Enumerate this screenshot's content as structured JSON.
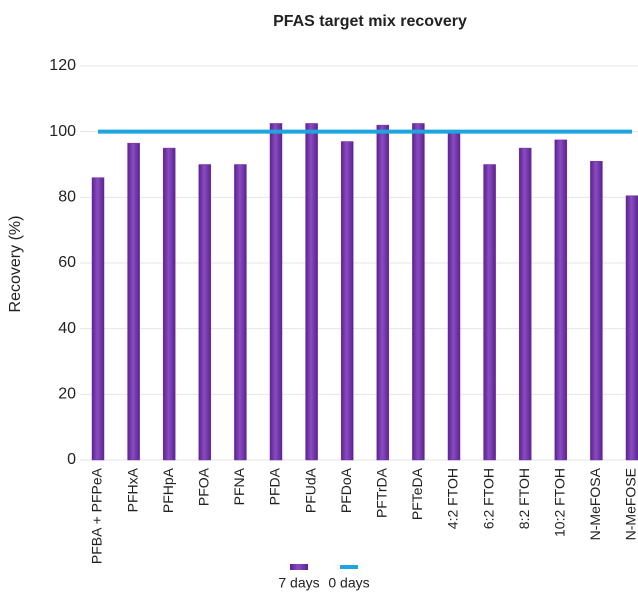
{
  "chart_data": {
    "type": "bar",
    "title": "PFAS target mix recovery",
    "y_label": "Recovery (%)",
    "categories": [
      "PFBA + PFPeA",
      "PFHxA",
      "PFHpA",
      "PFOA",
      "PFNA",
      "PFDA",
      "PFUdA",
      "PFDoA",
      "PFTrDA",
      "PFTeDA",
      "4:2 FTOH",
      "6:2 FTOH",
      "8:2 FTOH",
      "10:2 FTOH",
      "N-MeFOSA",
      "N-MeFOSE"
    ],
    "series": [
      {
        "name": "7 days",
        "type": "bar",
        "color": "#7030a0",
        "values": [
          86,
          96.5,
          95,
          90,
          90,
          102.5,
          102.5,
          97,
          102,
          102.5,
          100,
          90,
          95,
          97.5,
          91,
          80.5
        ]
      },
      {
        "name": "0 days",
        "type": "line",
        "color": "#1ea5e0",
        "values": [
          100,
          100,
          100,
          100,
          100,
          100,
          100,
          100,
          100,
          100,
          100,
          100,
          100,
          100,
          100,
          100
        ]
      }
    ],
    "ylim": [
      0,
      120
    ],
    "yticks": [
      0,
      20,
      40,
      60,
      80,
      100,
      120
    ],
    "grid": true,
    "legend": "bottom"
  }
}
